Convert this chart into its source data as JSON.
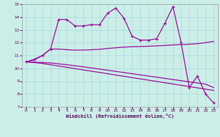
{
  "xlabel": "Windchill (Refroidissement éolien,°C)",
  "bg_color": "#cceee8",
  "grid_color": "#aadddd",
  "line_color": "#990099",
  "xlim": [
    -0.5,
    23.5
  ],
  "ylim": [
    7,
    15
  ],
  "xticks": [
    0,
    1,
    2,
    3,
    4,
    5,
    6,
    7,
    8,
    9,
    10,
    11,
    12,
    13,
    14,
    15,
    16,
    17,
    18,
    19,
    20,
    21,
    22,
    23
  ],
  "yticks": [
    7,
    8,
    9,
    10,
    11,
    12,
    13,
    14,
    15
  ],
  "series1_x": [
    0,
    1,
    2,
    3,
    4,
    5,
    6,
    7,
    8,
    9,
    10,
    11,
    12,
    13,
    14,
    15,
    16,
    17,
    18,
    19,
    20,
    21,
    22,
    23
  ],
  "series1_y": [
    10.5,
    10.7,
    11.0,
    11.5,
    13.8,
    13.8,
    13.3,
    13.3,
    13.4,
    13.4,
    14.3,
    14.7,
    13.9,
    12.5,
    12.2,
    12.2,
    12.3,
    13.5,
    14.8,
    12.0,
    8.5,
    9.4,
    8.0,
    7.3
  ],
  "series2_x": [
    0,
    1,
    2,
    3,
    4,
    5,
    6,
    7,
    8,
    9,
    10,
    11,
    12,
    13,
    14,
    15,
    16,
    17,
    18,
    19,
    20,
    21,
    22,
    23
  ],
  "series2_y": [
    10.5,
    10.65,
    11.0,
    11.5,
    11.5,
    11.45,
    11.42,
    11.42,
    11.45,
    11.48,
    11.55,
    11.6,
    11.65,
    11.68,
    11.7,
    11.72,
    11.75,
    11.78,
    11.82,
    11.85,
    11.88,
    11.92,
    12.0,
    12.1
  ],
  "series3_x": [
    0,
    1,
    2,
    3,
    4,
    5,
    6,
    7,
    8,
    9,
    10,
    11,
    12,
    13,
    14,
    15,
    16,
    17,
    18,
    19,
    20,
    21,
    22,
    23
  ],
  "series3_y": [
    10.5,
    10.48,
    10.45,
    10.42,
    10.35,
    10.28,
    10.2,
    10.12,
    10.03,
    9.94,
    9.85,
    9.76,
    9.67,
    9.58,
    9.49,
    9.4,
    9.31,
    9.22,
    9.13,
    9.04,
    8.95,
    8.86,
    8.77,
    8.5
  ],
  "series4_x": [
    0,
    1,
    2,
    3,
    4,
    5,
    6,
    7,
    8,
    9,
    10,
    11,
    12,
    13,
    14,
    15,
    16,
    17,
    18,
    19,
    20,
    21,
    22,
    23
  ],
  "series4_y": [
    10.5,
    10.45,
    10.38,
    10.28,
    10.18,
    10.08,
    9.98,
    9.88,
    9.78,
    9.68,
    9.58,
    9.48,
    9.38,
    9.28,
    9.18,
    9.08,
    8.98,
    8.88,
    8.78,
    8.68,
    8.58,
    8.48,
    8.38,
    8.28
  ]
}
